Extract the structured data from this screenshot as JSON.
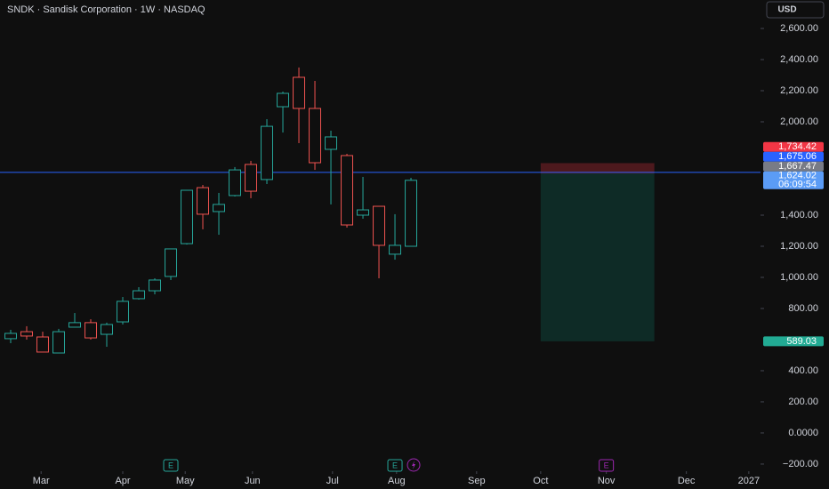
{
  "chart_data": {
    "type": "candlestick",
    "title": "SNDK · Sandisk Corporation · 1W · NASDAQ",
    "currency": "USD",
    "x": [
      0,
      1,
      2,
      3,
      4,
      5,
      6,
      7,
      8,
      9,
      10,
      11,
      12,
      13,
      14,
      15,
      16,
      17,
      18,
      19,
      20,
      21,
      22,
      23,
      24,
      25
    ],
    "open": [
      606,
      651,
      617,
      514,
      680,
      709,
      634,
      714,
      863,
      914,
      1006,
      1217,
      1577,
      1423,
      1526,
      1726,
      1629,
      2097,
      2286,
      2086,
      1823,
      1783,
      1400,
      1457,
      1149,
      1200
    ],
    "high": [
      663,
      686,
      651,
      669,
      771,
      731,
      709,
      874,
      937,
      994,
      1183,
      1560,
      1594,
      1543,
      1709,
      1749,
      2017,
      2194,
      2349,
      2263,
      1943,
      1794,
      1646,
      1457,
      1406,
      1640
    ],
    "low": [
      577,
      600,
      520,
      514,
      680,
      600,
      554,
      697,
      857,
      891,
      983,
      1211,
      1309,
      1274,
      1520,
      1509,
      1600,
      1931,
      1863,
      1691,
      1469,
      1320,
      1377,
      994,
      1114,
      1200
    ],
    "close": [
      640,
      623,
      520,
      651,
      709,
      611,
      697,
      846,
      914,
      983,
      1183,
      1560,
      1406,
      1469,
      1691,
      1554,
      1971,
      2183,
      2086,
      1737,
      1903,
      1337,
      1434,
      1206,
      1206,
      1624.02
    ],
    "up_color": "#26a69a",
    "down_color": "#ef5350",
    "xlim": [
      -0.667,
      46.83
    ],
    "xticks": [
      {
        "value": 1.9,
        "label": "Mar"
      },
      {
        "value": 7,
        "label": "Apr"
      },
      {
        "value": 10.9,
        "label": "May"
      },
      {
        "value": 15.1,
        "label": "Jun"
      },
      {
        "value": 20.1,
        "label": "Jul"
      },
      {
        "value": 24.1,
        "label": "Aug"
      },
      {
        "value": 29.1,
        "label": "Sep"
      },
      {
        "value": 33.1,
        "label": "Oct"
      },
      {
        "value": 37.2,
        "label": "Nov"
      },
      {
        "value": 42.2,
        "label": "Dec"
      },
      {
        "value": 46.1,
        "label": "2027"
      }
    ],
    "ylim": [
      -246,
      2783
    ],
    "yticks": [
      {
        "value": 2600,
        "label": "2,600.00"
      },
      {
        "value": 2400,
        "label": "2,400.00"
      },
      {
        "value": 2200,
        "label": "2,200.00"
      },
      {
        "value": 2000,
        "label": "2,000.00"
      },
      {
        "value": 1400,
        "label": "1,400.00"
      },
      {
        "value": 1200,
        "label": "1,200.00"
      },
      {
        "value": 1000,
        "label": "1,000.00"
      },
      {
        "value": 800,
        "label": "800.00"
      },
      {
        "value": 400,
        "label": "400.00"
      },
      {
        "value": 200,
        "label": "200.00"
      },
      {
        "value": 0,
        "label": "0.0000"
      },
      {
        "value": -200,
        "label": "−200.00"
      }
    ],
    "price_line": 1675.06,
    "position": {
      "start": 33.1,
      "end": 40.2,
      "stop": 1734.42,
      "entry": 1667.47,
      "target": 589.03
    },
    "price_labels": [
      {
        "value": 1734.42,
        "label": "1,734.42",
        "color": "#f23645"
      },
      {
        "value": 1675.06,
        "label": "1,675.06",
        "color": "#2962ff"
      },
      {
        "value": 1667.47,
        "label": "1,667.47",
        "color": "#787b86"
      },
      {
        "value": 1624.02,
        "label": "1,624.02",
        "color": "#5b9cf6",
        "sub": "06:09:54"
      },
      {
        "value": 589.03,
        "label": "589.03",
        "color": "#22ab94"
      }
    ],
    "events": [
      {
        "x": 10,
        "label": "E",
        "color": "#26a69a"
      },
      {
        "x": 24,
        "label": "E",
        "color": "#26a69a"
      },
      {
        "x": 37.2,
        "label": "E",
        "color": "#9c27b0"
      }
    ]
  }
}
